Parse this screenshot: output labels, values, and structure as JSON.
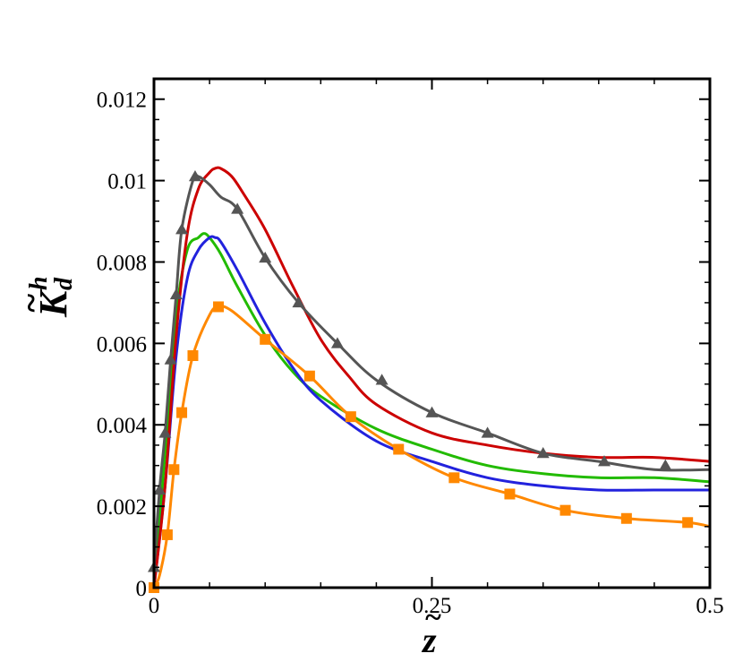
{
  "chart_data": {
    "type": "line",
    "title": "",
    "xlabel": "z",
    "ylabel": "K",
    "ylabel_superscript": "h",
    "ylabel_subscript": "d",
    "xlim": [
      0,
      0.5
    ],
    "ylim": [
      0,
      0.0125
    ],
    "xticks": [
      0,
      0.25,
      0.5
    ],
    "xtick_labels": [
      "0",
      "0.25",
      "0.5"
    ],
    "yticks": [
      0,
      0.002,
      0.004,
      0.006,
      0.008,
      0.01,
      0.012
    ],
    "ytick_labels": [
      "0",
      "0.002",
      "0.004",
      "0.006",
      "0.008",
      "0.01",
      "0.012"
    ],
    "grid": false,
    "legend": "none",
    "series": [
      {
        "color": "#cc0000",
        "marker": "none",
        "x": [
          0,
          0.01,
          0.02,
          0.03,
          0.04,
          0.05,
          0.055,
          0.06,
          0.07,
          0.08,
          0.1,
          0.125,
          0.15,
          0.175,
          0.2,
          0.25,
          0.3,
          0.35,
          0.4,
          0.45,
          0.5
        ],
        "y": [
          0,
          0.0025,
          0.0062,
          0.0087,
          0.0098,
          0.0102,
          0.0103,
          0.0103,
          0.0101,
          0.0097,
          0.0088,
          0.0074,
          0.0061,
          0.0052,
          0.0045,
          0.0038,
          0.0035,
          0.0033,
          0.0032,
          0.0032,
          0.0031
        ]
      },
      {
        "color": "#555555",
        "marker": "triangle",
        "x": [
          0,
          0.005,
          0.01,
          0.015,
          0.02,
          0.025,
          0.035,
          0.04,
          0.05,
          0.06,
          0.075,
          0.1,
          0.13,
          0.165,
          0.2,
          0.25,
          0.3,
          0.35,
          0.4,
          0.45,
          0.5
        ],
        "y": [
          0.0005,
          0.0024,
          0.0038,
          0.0056,
          0.0072,
          0.0088,
          0.01,
          0.0101,
          0.0099,
          0.0096,
          0.0093,
          0.0081,
          0.007,
          0.006,
          0.0051,
          0.0043,
          0.0038,
          0.0033,
          0.0031,
          0.0029,
          0.0029
        ],
        "markers_x": [
          0,
          0.005,
          0.01,
          0.015,
          0.02,
          0.025,
          0.037,
          0.075,
          0.1,
          0.13,
          0.165,
          0.205,
          0.25,
          0.3,
          0.35,
          0.405,
          0.46
        ],
        "markers_y": [
          0.0005,
          0.0024,
          0.0038,
          0.0056,
          0.0072,
          0.0088,
          0.0101,
          0.0093,
          0.0081,
          0.007,
          0.006,
          0.0051,
          0.0043,
          0.0038,
          0.0033,
          0.0031,
          0.003
        ]
      },
      {
        "color": "#22bb00",
        "marker": "none",
        "x": [
          0,
          0.01,
          0.02,
          0.03,
          0.04,
          0.045,
          0.05,
          0.06,
          0.075,
          0.1,
          0.125,
          0.15,
          0.2,
          0.25,
          0.3,
          0.35,
          0.4,
          0.45,
          0.5
        ],
        "y": [
          0,
          0.0033,
          0.0067,
          0.0083,
          0.0086,
          0.0087,
          0.0086,
          0.0082,
          0.0074,
          0.0062,
          0.0053,
          0.0047,
          0.0039,
          0.0034,
          0.003,
          0.0028,
          0.0027,
          0.0027,
          0.0026
        ]
      },
      {
        "color": "#2222dd",
        "marker": "none",
        "x": [
          0,
          0.01,
          0.02,
          0.03,
          0.04,
          0.05,
          0.055,
          0.06,
          0.075,
          0.1,
          0.125,
          0.15,
          0.2,
          0.25,
          0.3,
          0.35,
          0.4,
          0.45,
          0.5
        ],
        "y": [
          0,
          0.0025,
          0.0057,
          0.0076,
          0.0083,
          0.0086,
          0.0086,
          0.0085,
          0.0078,
          0.0065,
          0.0054,
          0.0046,
          0.0036,
          0.0031,
          0.0027,
          0.0025,
          0.0024,
          0.0024,
          0.0024
        ]
      },
      {
        "color": "#ff8800",
        "marker": "square",
        "x": [
          0,
          0.005,
          0.012,
          0.018,
          0.025,
          0.035,
          0.05,
          0.058,
          0.07,
          0.1,
          0.14,
          0.177,
          0.22,
          0.27,
          0.32,
          0.37,
          0.425,
          0.48,
          0.5
        ],
        "y": [
          0,
          0.0003,
          0.0013,
          0.0029,
          0.0043,
          0.0057,
          0.0067,
          0.0069,
          0.0068,
          0.0061,
          0.0052,
          0.0042,
          0.0034,
          0.0027,
          0.0023,
          0.0019,
          0.0017,
          0.0016,
          0.0015
        ],
        "markers_x": [
          0,
          0.012,
          0.018,
          0.025,
          0.035,
          0.058,
          0.1,
          0.14,
          0.177,
          0.22,
          0.27,
          0.32,
          0.37,
          0.425,
          0.48
        ],
        "markers_y": [
          0,
          0.0013,
          0.0029,
          0.0043,
          0.0057,
          0.0069,
          0.0061,
          0.0052,
          0.0042,
          0.0034,
          0.0027,
          0.0023,
          0.0019,
          0.0017,
          0.0016
        ]
      }
    ]
  }
}
